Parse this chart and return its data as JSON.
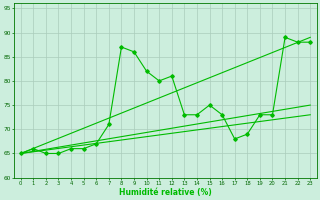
{
  "xlabel": "Humidité relative (%)",
  "background_color": "#cceedd",
  "grid_color": "#aaccbb",
  "line_color": "#00bb00",
  "xlim": [
    -0.5,
    23.5
  ],
  "ylim": [
    60,
    96
  ],
  "yticks": [
    60,
    65,
    70,
    75,
    80,
    85,
    90,
    95
  ],
  "xticks": [
    0,
    1,
    2,
    3,
    4,
    5,
    6,
    7,
    8,
    9,
    10,
    11,
    12,
    13,
    14,
    15,
    16,
    17,
    18,
    19,
    20,
    21,
    22,
    23
  ],
  "series1_x": [
    0,
    1,
    2,
    3,
    4,
    5,
    6,
    7,
    8,
    9,
    10,
    11,
    12,
    13,
    14,
    15,
    16,
    17,
    18,
    19,
    20,
    21,
    22,
    23
  ],
  "series1_y": [
    65,
    66,
    65,
    65,
    66,
    66,
    67,
    71,
    87,
    86,
    82,
    80,
    81,
    73,
    73,
    75,
    73,
    68,
    69,
    73,
    73,
    89,
    88,
    88
  ],
  "trend1_x": [
    0,
    23
  ],
  "trend1_y": [
    65,
    89
  ],
  "trend2_x": [
    0,
    23
  ],
  "trend2_y": [
    65,
    75
  ],
  "trend3_x": [
    0,
    23
  ],
  "trend3_y": [
    65,
    73
  ]
}
